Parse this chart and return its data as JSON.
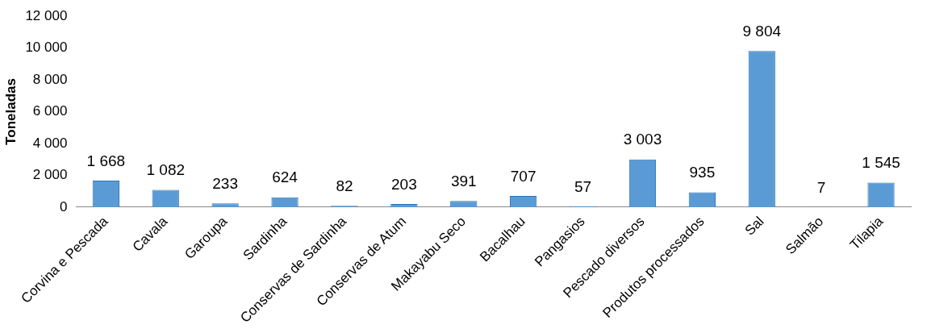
{
  "chart_data": {
    "type": "bar",
    "ylabel": "Toneladas",
    "categories": [
      "Corvina e Pescada",
      "Cavala",
      "Garoupa",
      "Sardinha",
      "Conservas de Sardinha",
      "Conservas de Atum",
      "Makayabu Seco",
      "Bacalhau",
      "Pangasios",
      "Pescado diversos",
      "Produtos processados",
      "Sal",
      "Salmão",
      "Tilapia"
    ],
    "values": [
      1668,
      1082,
      233,
      624,
      82,
      203,
      391,
      707,
      57,
      3003,
      935,
      9804,
      7,
      1545
    ],
    "value_labels": [
      "1 668",
      "1 082",
      "233",
      "624",
      "82",
      "203",
      "391",
      "707",
      "57",
      "3 003",
      "935",
      "9 804",
      "7",
      "1 545"
    ],
    "color": "#5b9bd5",
    "ylim": [
      0,
      12000
    ],
    "yticks": [
      0,
      {
        "value": 2000,
        "label": "2 000"
      },
      {
        "value": 4000,
        "label": "4 000"
      },
      {
        "value": 6000,
        "label": "6 000"
      },
      {
        "value": 8000,
        "label": "8 000"
      },
      {
        "value": 10000,
        "label": "10 000"
      },
      {
        "value": 12000,
        "label": "12 000"
      }
    ],
    "grid": false
  }
}
